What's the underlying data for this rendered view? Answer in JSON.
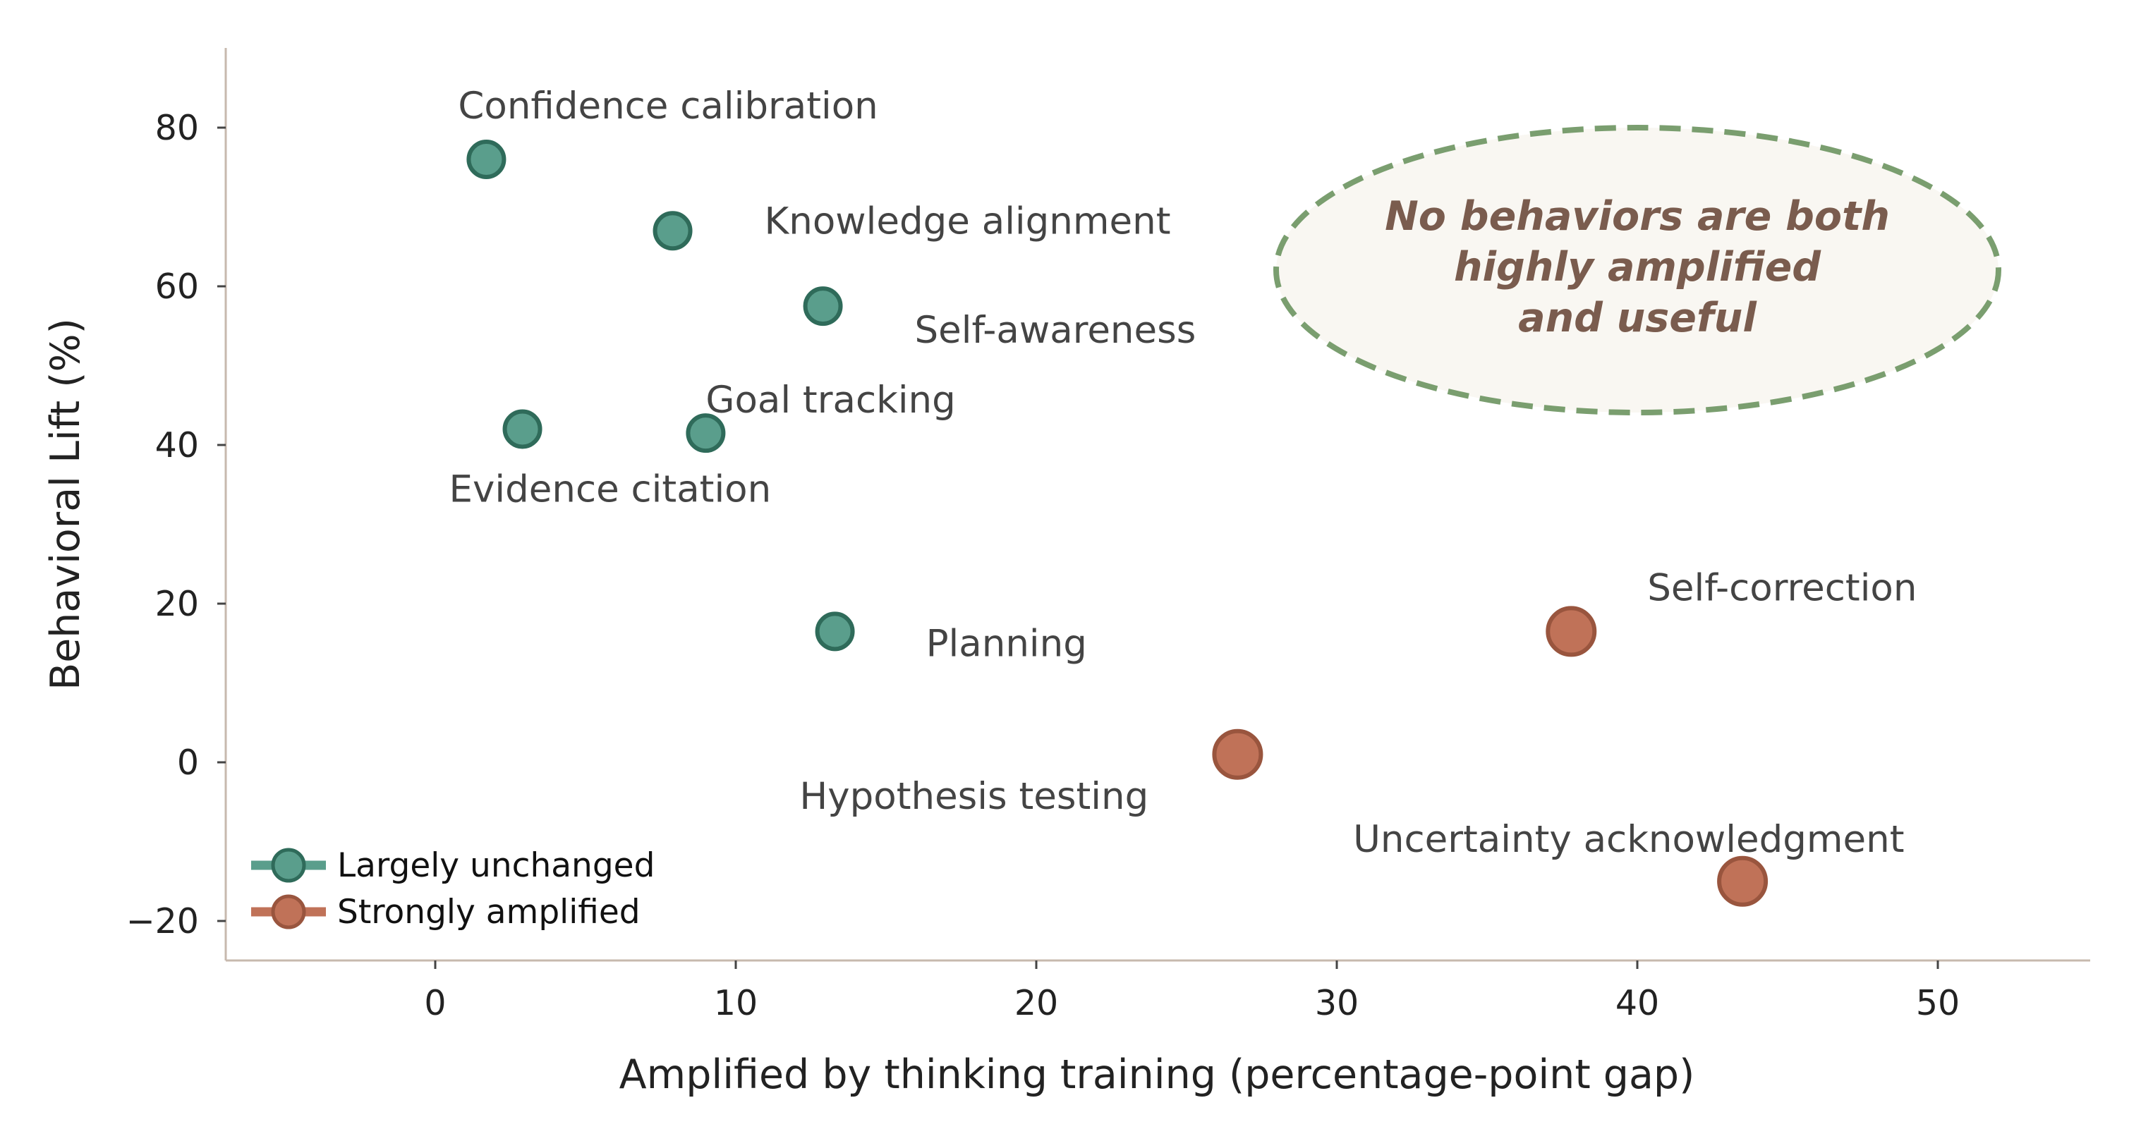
{
  "chart_data": {
    "type": "scatter",
    "xlabel": "Amplified by thinking training (percentage-point gap)",
    "ylabel": "Behavioral Lift (%)",
    "xlim": [
      -7,
      55
    ],
    "ylim": [
      -25,
      90
    ],
    "xticks": [
      0,
      10,
      20,
      30,
      40,
      50
    ],
    "yticks": [
      -20,
      0,
      20,
      40,
      60,
      80
    ],
    "ytick_labels": [
      "−20",
      "0",
      "20",
      "40",
      "60",
      "80"
    ],
    "grid": false,
    "legend_position": "lower-left",
    "series": [
      {
        "name": "Largely unchanged",
        "color": "#5a9e8c",
        "edge_color": "#2f6b5a",
        "points": [
          {
            "label": "Confidence calibration",
            "x": 1.7,
            "y": 76
          },
          {
            "label": "Knowledge alignment",
            "x": 7.9,
            "y": 67
          },
          {
            "label": "Self-awareness",
            "x": 12.9,
            "y": 57.5
          },
          {
            "label": "Evidence citation",
            "x": 2.9,
            "y": 42
          },
          {
            "label": "Goal tracking",
            "x": 9.0,
            "y": 41.5
          },
          {
            "label": "Planning",
            "x": 13.3,
            "y": 16.5
          }
        ]
      },
      {
        "name": "Strongly amplified",
        "color": "#c07258",
        "edge_color": "#99553e",
        "points": [
          {
            "label": "Hypothesis testing",
            "x": 26.7,
            "y": 1
          },
          {
            "label": "Self-correction",
            "x": 37.8,
            "y": 16.5
          },
          {
            "label": "Uncertainty acknowledgment",
            "x": 43.5,
            "y": -15
          }
        ]
      }
    ],
    "annotation": {
      "lines": [
        "No behaviors are both",
        "highly amplified",
        "and useful"
      ],
      "text_color": "#7a5c4e",
      "fill_color": "#f9f7f2",
      "border_color": "#7a9e6f"
    }
  }
}
